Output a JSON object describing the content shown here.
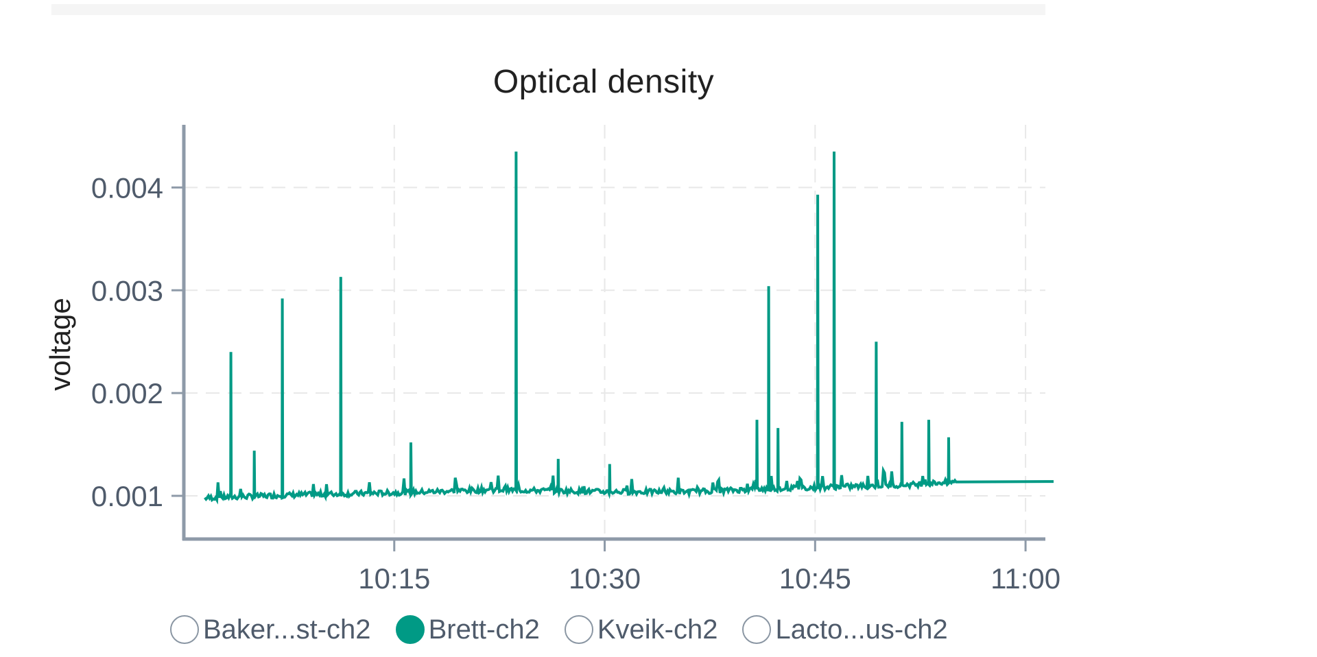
{
  "chart_data": {
    "type": "line",
    "title": "Optical density",
    "ylabel": "voltage",
    "xlabel": "",
    "ylim": [
      0.00058,
      0.00461
    ],
    "xlim_minutes": [
      "10:00",
      "11:02"
    ],
    "y_ticks": [
      {
        "value": 0.001,
        "label": "0.001"
      },
      {
        "value": 0.002,
        "label": "0.002"
      },
      {
        "value": 0.003,
        "label": "0.003"
      },
      {
        "value": 0.004,
        "label": "0.004"
      }
    ],
    "x_ticks": [
      {
        "value": "10:15",
        "label": "10:15"
      },
      {
        "value": "10:30",
        "label": "10:30"
      },
      {
        "value": "10:45",
        "label": "10:45"
      },
      {
        "value": "11:00",
        "label": "11:00"
      }
    ],
    "grid": true,
    "legend_position": "bottom",
    "series": [
      {
        "name": "Brett-ch2",
        "color": "#009a85",
        "baseline_points": [
          [
            "10:01:30",
            0.00098
          ],
          [
            "10:08",
            0.00101
          ],
          [
            "10:15",
            0.00103
          ],
          [
            "10:22",
            0.00106
          ],
          [
            "10:30",
            0.00104
          ],
          [
            "10:36",
            0.00104
          ],
          [
            "10:42",
            0.00107
          ],
          [
            "10:47",
            0.00109
          ],
          [
            "10:52",
            0.00111
          ],
          [
            "10:54",
            0.00113
          ],
          [
            "10:56",
            0.00114
          ],
          [
            "11:02",
            0.00114
          ]
        ],
        "spikes": [
          [
            "10:03:20",
            0.0024
          ],
          [
            "10:05",
            0.00144
          ],
          [
            "10:07",
            0.00292
          ],
          [
            "10:11:10",
            0.00313
          ],
          [
            "10:16:10",
            0.00152
          ],
          [
            "10:23:40",
            0.00435
          ],
          [
            "10:26:40",
            0.00136
          ],
          [
            "10:30:20",
            0.00131
          ],
          [
            "10:40:50",
            0.00174
          ],
          [
            "10:41:40",
            0.00304
          ],
          [
            "10:42:20",
            0.00166
          ],
          [
            "10:45:10",
            0.00393
          ],
          [
            "10:46:20",
            0.00435
          ],
          [
            "10:49:20",
            0.0025
          ],
          [
            "10:51:10",
            0.00172
          ],
          [
            "10:53:05",
            0.00174
          ],
          [
            "10:54:30",
            0.00157
          ]
        ]
      }
    ],
    "legend": [
      {
        "label": "Baker...st-ch2",
        "active": false
      },
      {
        "label": "Brett-ch2",
        "active": true
      },
      {
        "label": "Kveik-ch2",
        "active": false
      },
      {
        "label": "Lacto...us-ch2",
        "active": false
      }
    ]
  }
}
